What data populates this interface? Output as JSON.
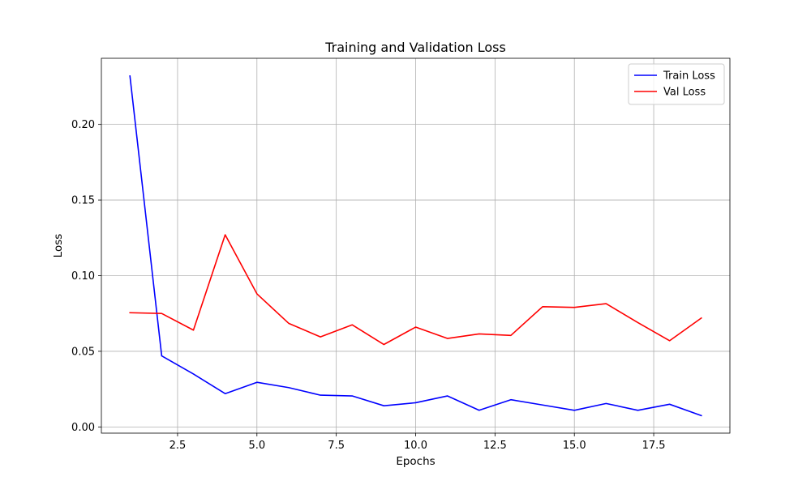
{
  "chart_data": {
    "type": "line",
    "title": "Training and Validation Loss",
    "xlabel": "Epochs",
    "ylabel": "Loss",
    "xlim": [
      0.1,
      19.9
    ],
    "ylim": [
      -0.0041,
      0.2437
    ],
    "xticks": [
      2.5,
      5.0,
      7.5,
      10.0,
      12.5,
      15.0,
      17.5
    ],
    "xtick_labels": [
      "2.5",
      "5.0",
      "7.5",
      "10.0",
      "12.5",
      "15.0",
      "17.5"
    ],
    "yticks": [
      0.0,
      0.05,
      0.1,
      0.15,
      0.2
    ],
    "ytick_labels": [
      "0.00",
      "0.05",
      "0.10",
      "0.15",
      "0.20"
    ],
    "grid": true,
    "legend_position": "top-right",
    "x": [
      1,
      2,
      3,
      4,
      5,
      6,
      7,
      8,
      9,
      10,
      11,
      12,
      13,
      14,
      15,
      16,
      17,
      18,
      19
    ],
    "series": [
      {
        "name": "Train Loss",
        "color": "#0000ff",
        "values": [
          0.232,
          0.047,
          0.035,
          0.022,
          0.0295,
          0.026,
          0.021,
          0.0205,
          0.014,
          0.016,
          0.0205,
          0.011,
          0.018,
          0.0145,
          0.011,
          0.0155,
          0.011,
          0.015,
          0.0075
        ]
      },
      {
        "name": "Val Loss",
        "color": "#ff0000",
        "values": [
          0.0755,
          0.075,
          0.064,
          0.127,
          0.088,
          0.0685,
          0.0595,
          0.0675,
          0.0545,
          0.066,
          0.0585,
          0.0615,
          0.0605,
          0.0795,
          0.079,
          0.0815,
          0.069,
          0.057,
          0.072
        ]
      }
    ]
  }
}
